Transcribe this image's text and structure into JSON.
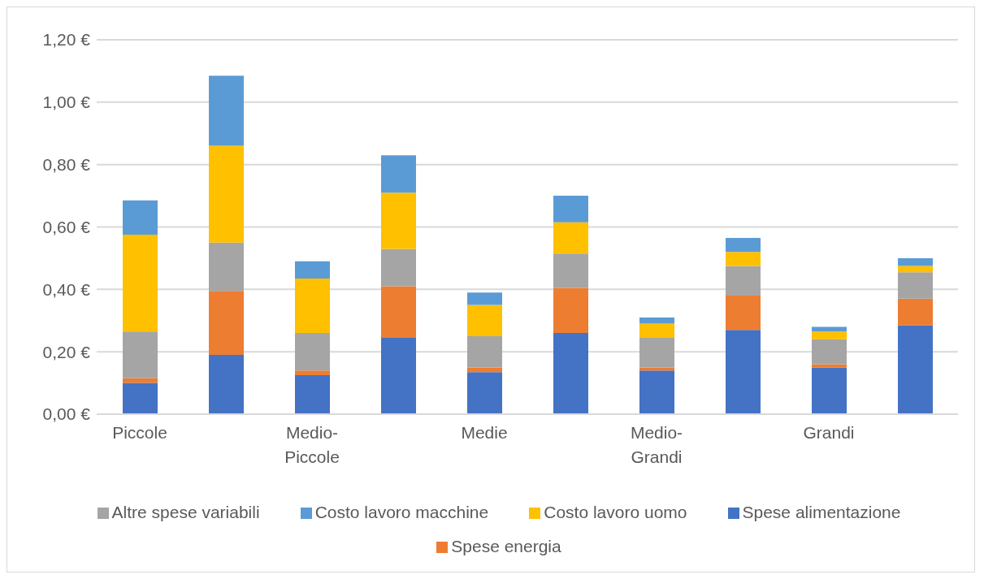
{
  "chart_data": {
    "type": "bar",
    "stacked": true,
    "categories": [
      "Piccole",
      null,
      "Medio-Piccole",
      null,
      "Medie",
      null,
      "Medio-Grandi",
      null,
      "Grandi",
      null
    ],
    "series": [
      {
        "name": "Spese alimentazione",
        "color": "#4472c4",
        "values": [
          0.1,
          0.19,
          0.125,
          0.245,
          0.135,
          0.26,
          0.14,
          0.27,
          0.15,
          0.285
        ]
      },
      {
        "name": "Spese energia",
        "color": "#ed7d31",
        "values": [
          0.015,
          0.205,
          0.015,
          0.165,
          0.015,
          0.145,
          0.01,
          0.11,
          0.01,
          0.085
        ]
      },
      {
        "name": "Altre spese variabili",
        "color": "#a5a5a5",
        "values": [
          0.15,
          0.155,
          0.12,
          0.12,
          0.1,
          0.11,
          0.095,
          0.095,
          0.08,
          0.085
        ]
      },
      {
        "name": "Costo lavoro uomo",
        "color": "#ffc000",
        "values": [
          0.31,
          0.31,
          0.175,
          0.18,
          0.1,
          0.1,
          0.045,
          0.045,
          0.025,
          0.02
        ]
      },
      {
        "name": "Costo lavoro macchine",
        "color": "#5b9bd5",
        "values": [
          0.11,
          0.225,
          0.055,
          0.12,
          0.04,
          0.085,
          0.02,
          0.045,
          0.015,
          0.025
        ]
      }
    ],
    "ylim": [
      0,
      1.2
    ],
    "yticks": [
      {
        "value": 0,
        "label": "0,00 €"
      },
      {
        "value": 0.2,
        "label": "0,20 €"
      },
      {
        "value": 0.4,
        "label": "0,40 €"
      },
      {
        "value": 0.6,
        "label": "0,60 €"
      },
      {
        "value": 0.8,
        "label": "0,80 €"
      },
      {
        "value": 1.0,
        "label": "1,00 €"
      },
      {
        "value": 1.2,
        "label": "1,20 €"
      }
    ],
    "grid": "y",
    "legend": "bottom"
  }
}
